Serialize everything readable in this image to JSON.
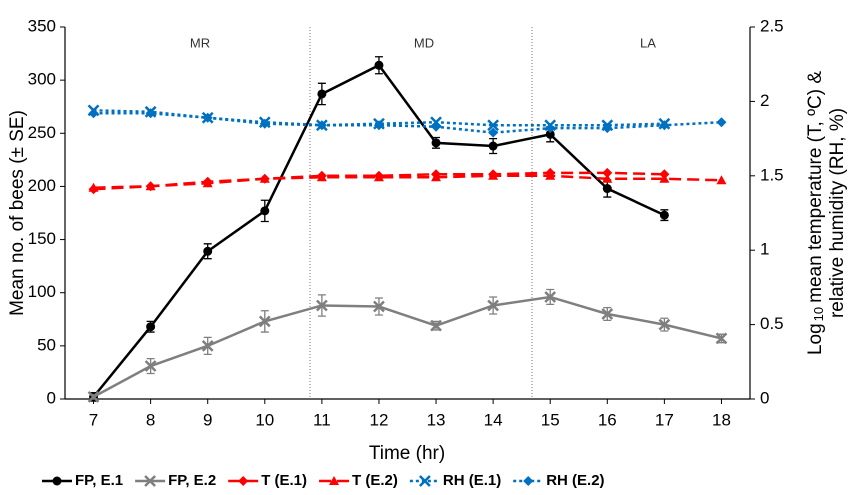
{
  "chart_data": {
    "type": "line",
    "x_label": "Time (hr)",
    "y_label": "Mean no. of bees (± SE)",
    "y2_label": {
      "prefix": "Log",
      "subscript": "10",
      "line1": "mean temperature (T, ºC) &",
      "line2": "relative humidity (RH, %)"
    },
    "regions": [
      "MR",
      "MD",
      "LA"
    ],
    "x": [
      7,
      8,
      9,
      10,
      11,
      12,
      13,
      14,
      15,
      16,
      17,
      18
    ],
    "xlim": [
      6.5,
      18.5
    ],
    "xticks": [
      7,
      8,
      9,
      10,
      11,
      12,
      13,
      14,
      15,
      16,
      17,
      18
    ],
    "ylim": [
      0,
      350
    ],
    "yticks": [
      0,
      50,
      100,
      150,
      200,
      250,
      300,
      350
    ],
    "y2lim": [
      0,
      2.5
    ],
    "y2ticks": [
      0,
      0.5,
      1,
      1.5,
      2,
      2.5
    ],
    "legend": "bottom",
    "series": [
      {
        "name": "FP, E.1",
        "color": "#000000",
        "marker": "circle",
        "dash": "solid",
        "values": [
          2,
          68,
          139,
          177,
          287,
          314,
          241,
          238,
          249,
          198,
          173,
          null
        ],
        "errors": [
          4,
          5,
          7,
          10,
          10,
          8,
          5,
          7,
          7,
          8,
          5,
          null
        ]
      },
      {
        "name": "FP, E.2",
        "color": "#7f7f7f",
        "marker": "x",
        "dash": "solid",
        "values": [
          2,
          31,
          50,
          73,
          88,
          87,
          69,
          88,
          96,
          80,
          70,
          57
        ],
        "errors": [
          2,
          7,
          8,
          10,
          10,
          8,
          4,
          8,
          7,
          6,
          6,
          4
        ]
      },
      {
        "name": "T (E.1)",
        "color": "#ff0000",
        "marker": "diamond",
        "dash": "dashed",
        "axis": "y2",
        "values": [
          1.41,
          1.43,
          1.46,
          1.48,
          1.5,
          1.5,
          1.51,
          1.51,
          1.52,
          1.52,
          1.51,
          null
        ]
      },
      {
        "name": "T (E.2)",
        "color": "#ff0000",
        "marker": "triangle",
        "dash": "dashed",
        "axis": "y2",
        "values": [
          1.42,
          1.43,
          1.45,
          1.48,
          1.49,
          1.49,
          1.49,
          1.5,
          1.5,
          1.48,
          1.48,
          1.47
        ]
      },
      {
        "name": "RH (E.1)",
        "color": "#0070c0",
        "marker": "x",
        "dash": "dotted",
        "axis": "y2",
        "values": [
          1.94,
          1.93,
          1.89,
          1.86,
          1.84,
          1.85,
          1.86,
          1.84,
          1.84,
          1.84,
          1.85,
          null
        ]
      },
      {
        "name": "RH (E.2)",
        "color": "#0070c0",
        "marker": "diamond",
        "dash": "dotted",
        "axis": "y2",
        "values": [
          1.92,
          1.92,
          1.89,
          1.85,
          1.84,
          1.84,
          1.83,
          1.79,
          1.82,
          1.82,
          1.84,
          1.86
        ]
      }
    ]
  }
}
